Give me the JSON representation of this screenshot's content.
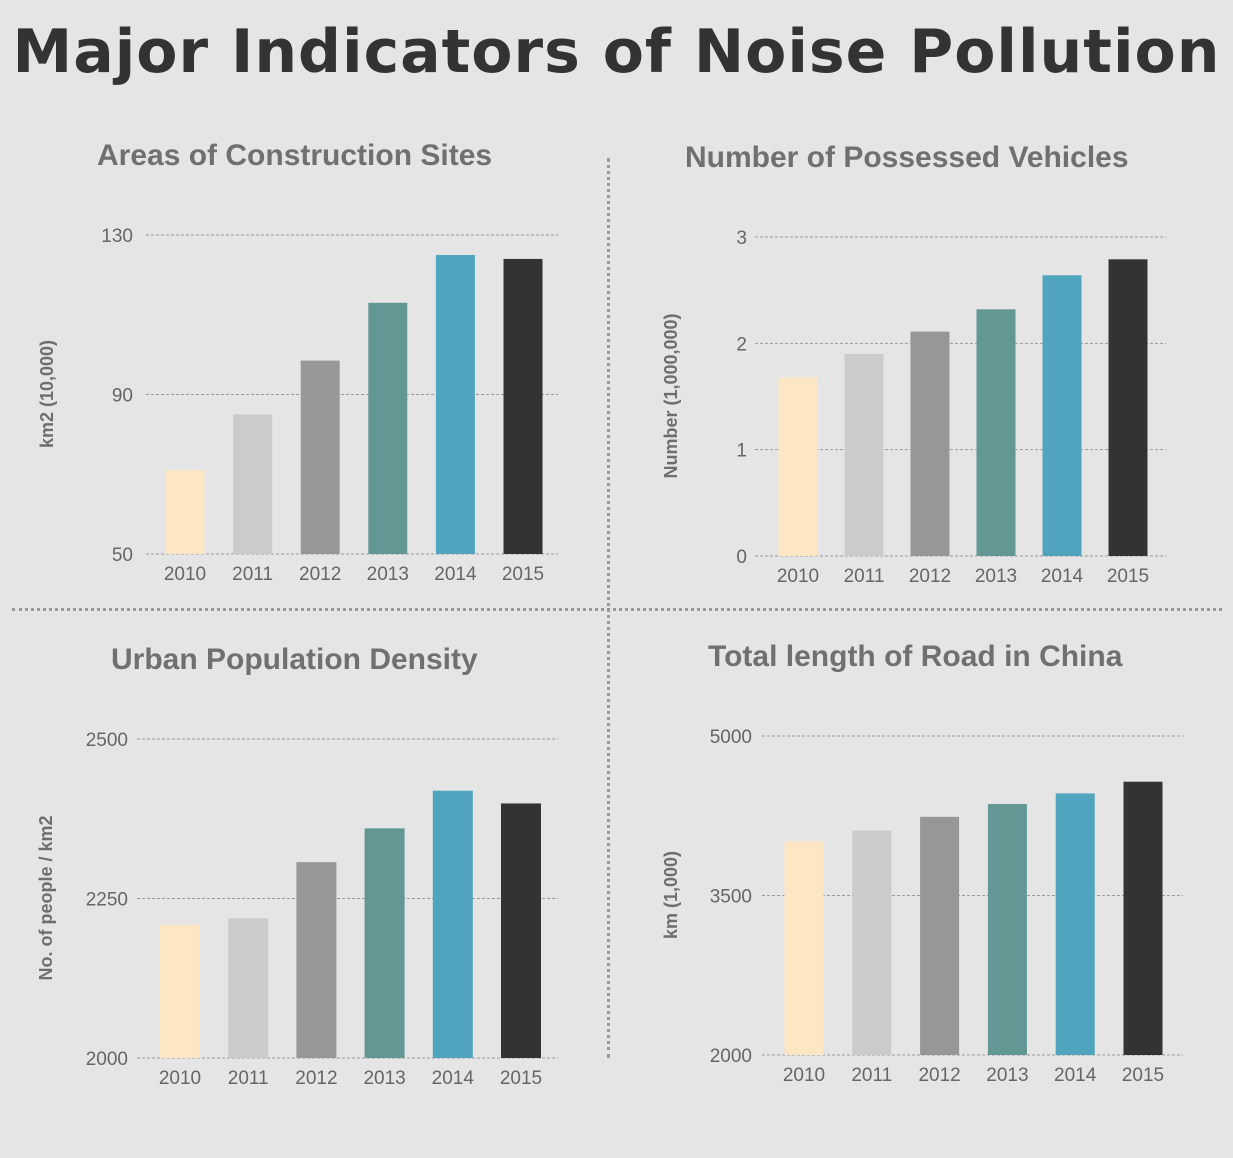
{
  "title": "Major Indicators of Noise Pollution",
  "colors": [
    "#fce6c4",
    "#cbcbcb",
    "#979797",
    "#629794",
    "#50a4bd",
    "#333333"
  ],
  "chart_data": [
    {
      "type": "bar",
      "title": "Areas of Construction Sites",
      "ylabel": "km2 (10,000)",
      "categories": [
        "2010",
        "2011",
        "2012",
        "2013",
        "2014",
        "2015"
      ],
      "values": [
        71,
        85,
        98.5,
        113,
        125,
        124
      ],
      "ylim": [
        50,
        130
      ],
      "yticks": [
        50,
        90,
        130
      ],
      "ytick_labels": [
        "50",
        "90",
        "130"
      ],
      "grid": true
    },
    {
      "type": "bar",
      "title": "Number of Possessed Vehicles",
      "ylabel": "Number (1,000,000)",
      "categories": [
        "2010",
        "2011",
        "2012",
        "2013",
        "2014",
        "2015"
      ],
      "values": [
        1.68,
        1.9,
        2.11,
        2.32,
        2.64,
        2.79
      ],
      "ylim": [
        0,
        3
      ],
      "yticks": [
        0,
        1,
        2,
        3
      ],
      "ytick_labels": [
        "0",
        "1",
        "2",
        "3"
      ],
      "grid": true
    },
    {
      "type": "bar",
      "title": "Urban Population Density",
      "ylabel": "No. of people / km2",
      "categories": [
        "2010",
        "2011",
        "2012",
        "2013",
        "2014",
        "2015"
      ],
      "values": [
        2209,
        2219,
        2307,
        2360,
        2419,
        2399
      ],
      "ylim": [
        2000,
        2500
      ],
      "yticks": [
        2000,
        2250,
        2500
      ],
      "ytick_labels": [
        "2000",
        "2250",
        "2500"
      ],
      "grid": true
    },
    {
      "type": "bar",
      "title": "Total length of Road in China",
      "ylabel": "km (1,000)",
      "categories": [
        "2010",
        "2011",
        "2012",
        "2013",
        "2014",
        "2015"
      ],
      "values": [
        4010,
        4110,
        4240,
        4360,
        4460,
        4570
      ],
      "ylim": [
        2000,
        5000
      ],
      "yticks": [
        2000,
        3500,
        5000
      ],
      "ytick_labels": [
        "2000",
        "3500",
        "5000"
      ],
      "grid": true
    }
  ]
}
